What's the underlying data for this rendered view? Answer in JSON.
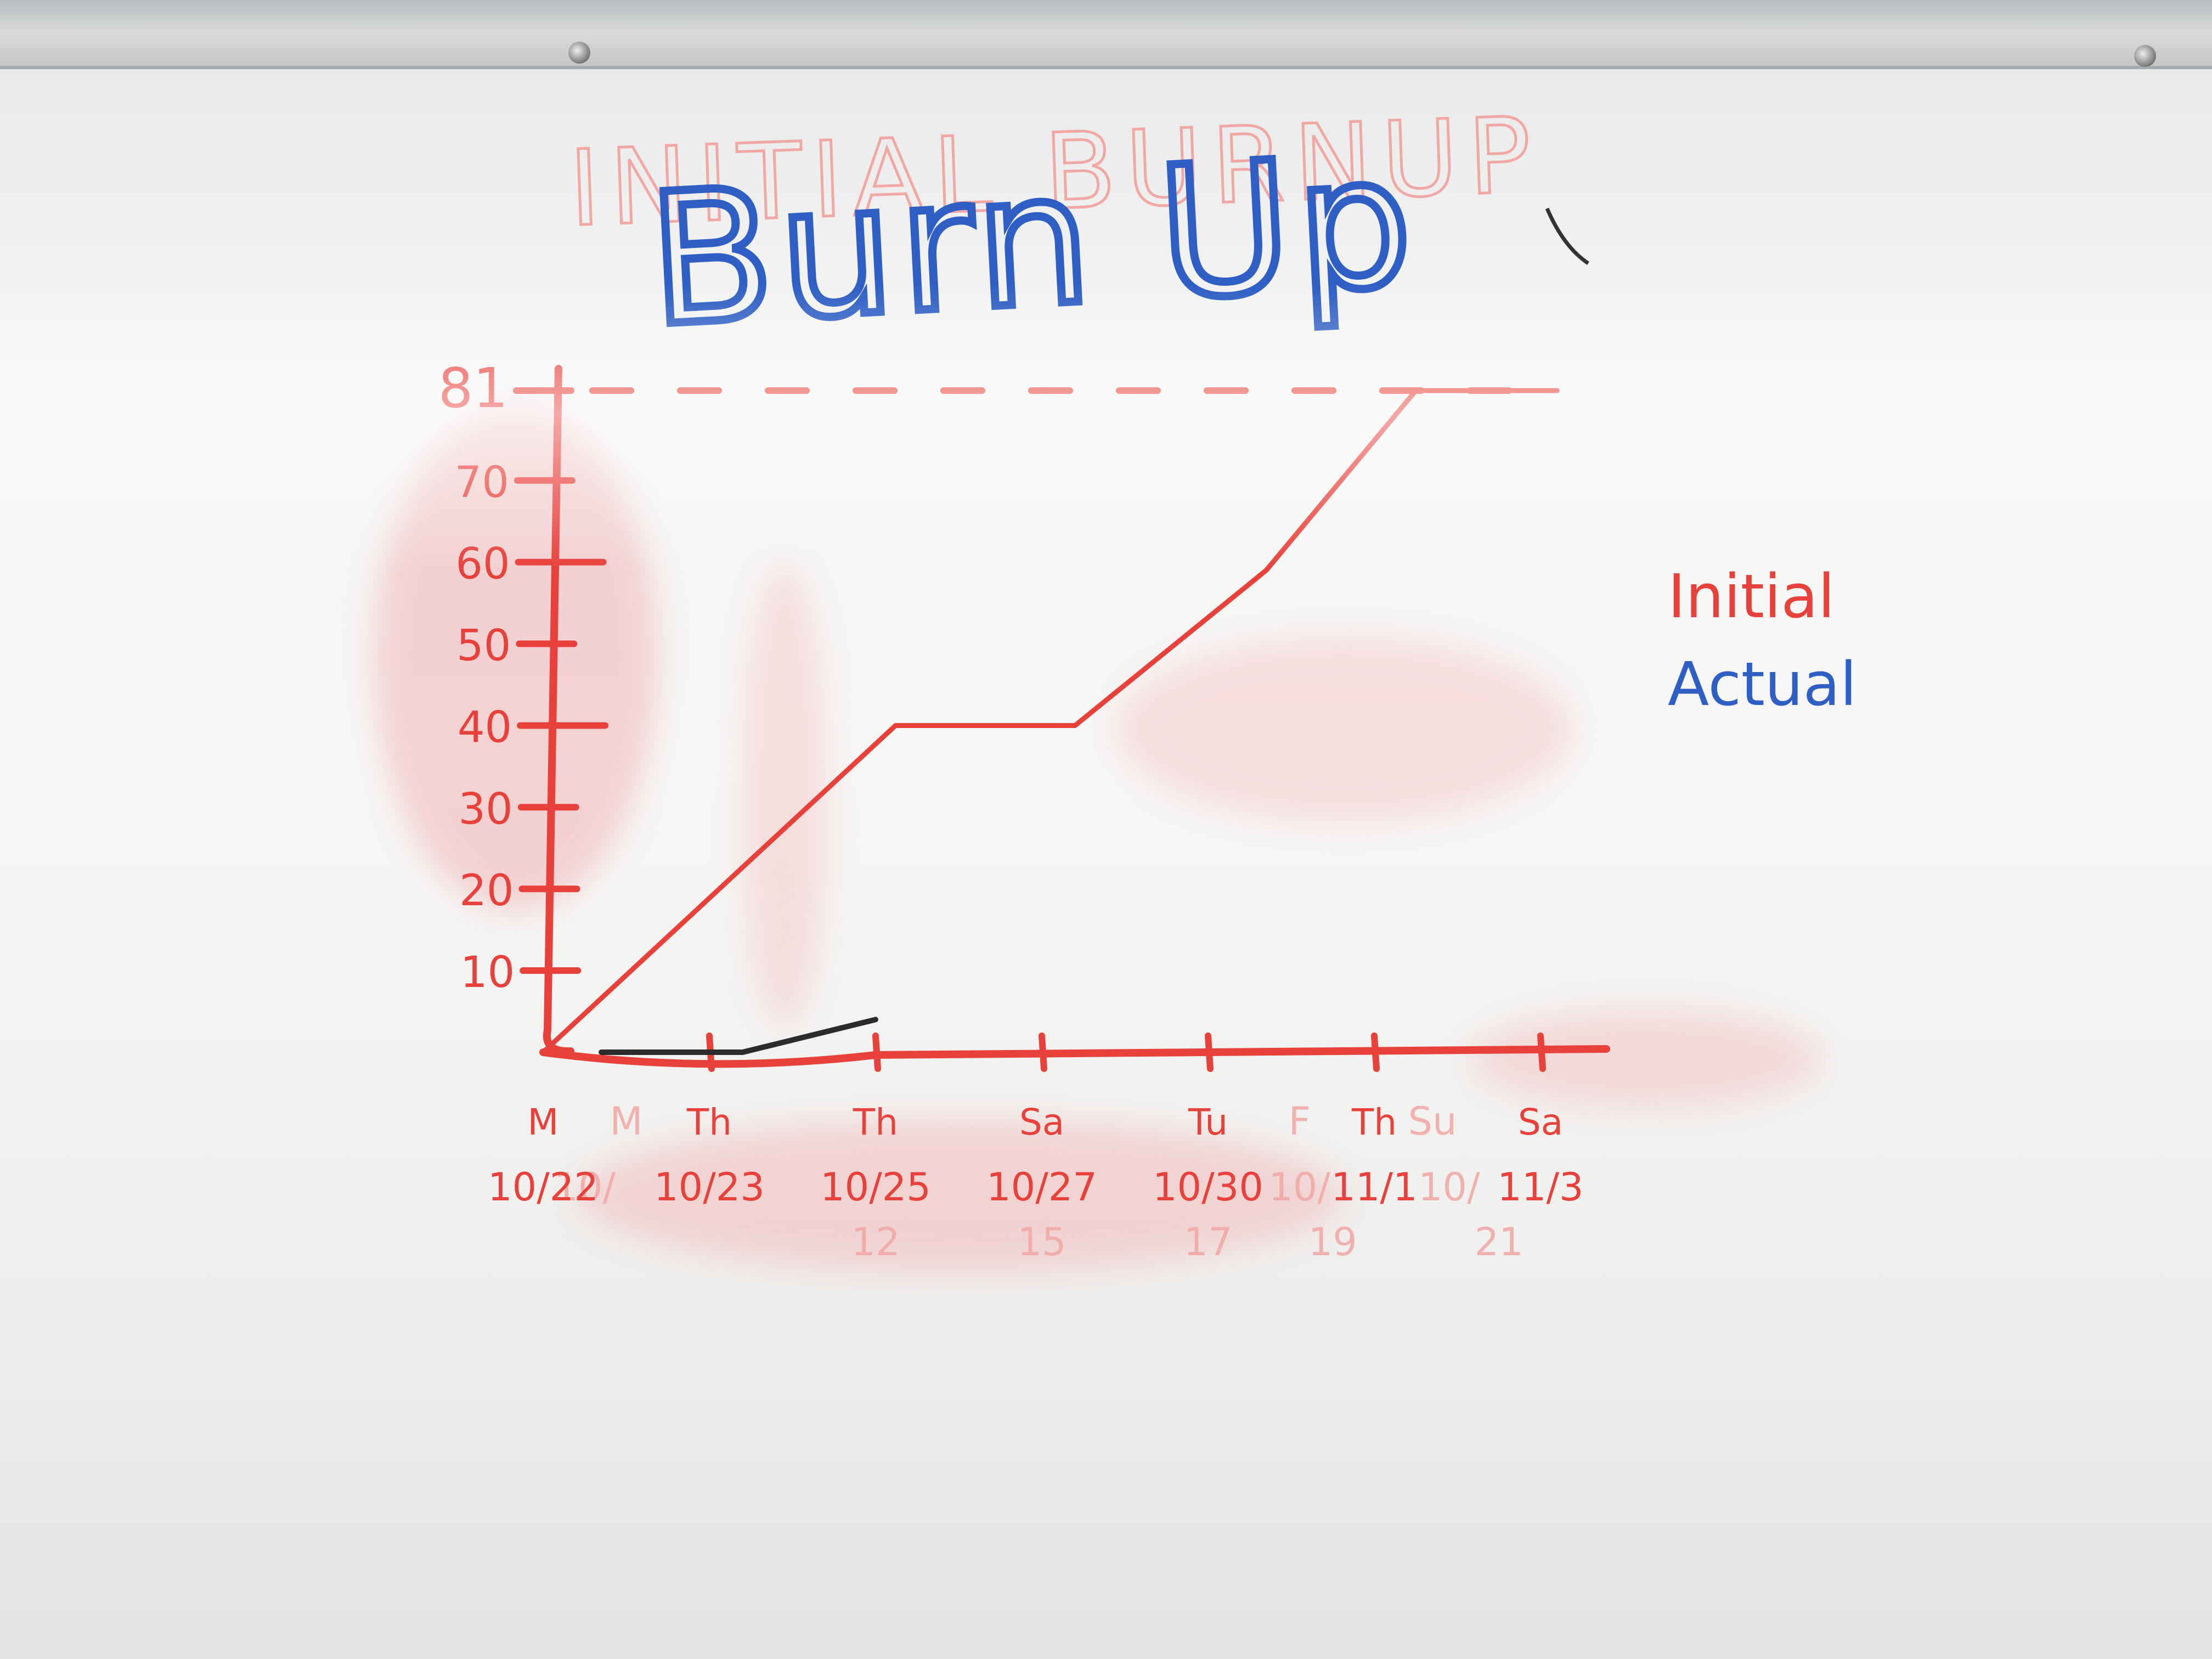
{
  "chart_data": {
    "type": "line",
    "title": "Burn Up",
    "ghost_title": "INITIAL BURNUP",
    "xlabel": "",
    "ylabel": "",
    "ylim": [
      0,
      81
    ],
    "x_ticks": [
      {
        "day": "M",
        "date": "10/22"
      },
      {
        "day": "Th",
        "date": "10/23"
      },
      {
        "day": "Th",
        "date": "10/25"
      },
      {
        "day": "Sa",
        "date": "10/27"
      },
      {
        "day": "Tu",
        "date": "10/30"
      },
      {
        "day": "Th",
        "date": "11/1"
      },
      {
        "day": "Sa",
        "date": "11/3"
      }
    ],
    "y_ticks": [
      {
        "value": 10,
        "label": "10"
      },
      {
        "value": 20,
        "label": "20"
      },
      {
        "value": 30,
        "label": "30"
      },
      {
        "value": 40,
        "label": "40"
      },
      {
        "value": 50,
        "label": "50"
      },
      {
        "value": 60,
        "label": "60"
      },
      {
        "value": 70,
        "label": "70"
      },
      {
        "value": 81,
        "label": "81"
      }
    ],
    "target": {
      "value": 81,
      "style": "dashed"
    },
    "series": [
      {
        "name": "Initial",
        "color": "#e8413c",
        "points": [
          {
            "x": 0,
            "y": 0
          },
          {
            "x": 2.12,
            "y": 40
          },
          {
            "x": 3.2,
            "y": 40
          },
          {
            "x": 4.35,
            "y": 59
          },
          {
            "x": 5.25,
            "y": 81
          },
          {
            "x": 6.1,
            "y": 81
          }
        ]
      },
      {
        "name": "Actual",
        "color": "#2f5fc4",
        "points": [
          {
            "x": 0.35,
            "y": 0
          },
          {
            "x": 1.2,
            "y": 0
          },
          {
            "x": 2.0,
            "y": 4
          }
        ]
      }
    ],
    "legend": {
      "placement": "right"
    }
  },
  "ghost_labels": [
    {
      "text": "M",
      "tick": 0.5,
      "row": "day"
    },
    {
      "text": "10/",
      "tick": 0.25,
      "row": "date"
    },
    {
      "text": "12",
      "tick": 2.0,
      "row": "faint"
    },
    {
      "text": "15",
      "tick": 3.0,
      "row": "faint"
    },
    {
      "text": "17",
      "tick": 4.0,
      "row": "faint"
    },
    {
      "text": "F",
      "tick": 4.55,
      "row": "day"
    },
    {
      "text": "Su",
      "tick": 5.35,
      "row": "day"
    },
    {
      "text": "10/",
      "tick": 4.55,
      "row": "date"
    },
    {
      "text": "19",
      "tick": 4.75,
      "row": "faint"
    },
    {
      "text": "10/",
      "tick": 5.45,
      "row": "date"
    },
    {
      "text": "21",
      "tick": 5.75,
      "row": "faint"
    }
  ],
  "colors": {
    "red_marker": "#e8413c",
    "blue_marker": "#2f5fc4",
    "ghost": "#f1a7a4"
  }
}
